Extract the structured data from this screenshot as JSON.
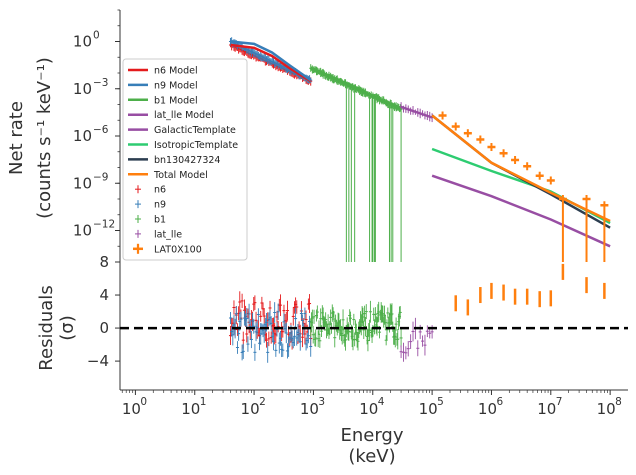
{
  "chart_data": {
    "type": "scatter",
    "x_axis": {
      "label_line1": "Energy",
      "label_line2": "(keV)",
      "scale": "log",
      "range": [
        0.55,
        200000000
      ],
      "ticks": [
        {
          "value": 1,
          "label": "10",
          "exp": "0"
        },
        {
          "value": 10,
          "label": "10",
          "exp": "1"
        },
        {
          "value": 100,
          "label": "10",
          "exp": "2"
        },
        {
          "value": 1000,
          "label": "10",
          "exp": "3"
        },
        {
          "value": 10000,
          "label": "10",
          "exp": "4"
        },
        {
          "value": 100000,
          "label": "10",
          "exp": "5"
        },
        {
          "value": 1000000,
          "label": "10",
          "exp": "6"
        },
        {
          "value": 10000000,
          "label": "10",
          "exp": "7"
        },
        {
          "value": 100000000,
          "label": "10",
          "exp": "8"
        }
      ]
    },
    "top_panel": {
      "ylabel_line1": "Net rate",
      "ylabel_line2": "(counts s⁻¹ keV⁻¹)",
      "yscale": "log",
      "ylim": [
        1e-14,
        100.0
      ],
      "yticks": [
        {
          "value": 1,
          "label": "10",
          "exp": "0"
        },
        {
          "value": 0.001,
          "label": "10",
          "exp": "−3"
        },
        {
          "value": 1e-06,
          "label": "10",
          "exp": "−6"
        },
        {
          "value": 1e-09,
          "label": "10",
          "exp": "−9"
        },
        {
          "value": 1e-12,
          "label": "10",
          "exp": "−12"
        }
      ],
      "legend_position": "center-left",
      "legend": [
        {
          "label": "n6 Model",
          "kind": "line",
          "color": "#e41a1c"
        },
        {
          "label": "n9 Model",
          "kind": "line",
          "color": "#377eb8"
        },
        {
          "label": "b1 Model",
          "kind": "line",
          "color": "#4daf4a"
        },
        {
          "label": "lat_lle Model",
          "kind": "line",
          "color": "#984ea3"
        },
        {
          "label": "GalacticTemplate",
          "kind": "line",
          "color": "#984ea3"
        },
        {
          "label": "IsotropicTemplate",
          "kind": "line",
          "color": "#2ecc71"
        },
        {
          "label": "bn130427324",
          "kind": "line",
          "color": "#2c3e50"
        },
        {
          "label": "Total Model",
          "kind": "line",
          "color": "#ff7f0e"
        },
        {
          "label": "n6",
          "kind": "marker",
          "color": "#e41a1c"
        },
        {
          "label": "n9",
          "kind": "marker",
          "color": "#377eb8"
        },
        {
          "label": "b1",
          "kind": "marker",
          "color": "#4daf4a"
        },
        {
          "label": "lat_lle",
          "kind": "marker",
          "color": "#984ea3"
        },
        {
          "label": "LAT0X100",
          "kind": "bigmarker",
          "color": "#ff7f0e"
        }
      ],
      "models": [
        {
          "name": "n6 Model",
          "color": "#e41a1c",
          "x": [
            40,
            100,
            200,
            400,
            900
          ],
          "y": [
            0.6,
            0.4,
            0.12,
            0.02,
            0.003
          ]
        },
        {
          "name": "n9 Model",
          "color": "#377eb8",
          "x": [
            40,
            100,
            200,
            400,
            900
          ],
          "y": [
            1.0,
            0.7,
            0.2,
            0.03,
            0.0035
          ]
        },
        {
          "name": "b1 Model",
          "color": "#4daf4a",
          "x": [
            900,
            3000,
            10000,
            30000
          ],
          "y": [
            0.02,
            0.003,
            0.00035,
            5e-05
          ]
        },
        {
          "name": "lat_lle Model",
          "color": "#984ea3",
          "x": [
            30000,
            100000
          ],
          "y": [
            7e-05,
            1.5e-05
          ]
        },
        {
          "name": "GalacticTemplate",
          "color": "#984ea3",
          "x": [
            100000,
            1000000,
            10000000,
            100000000
          ],
          "y": [
            3e-09,
            1.5e-10,
            5e-12,
            1e-13
          ]
        },
        {
          "name": "IsotropicTemplate",
          "color": "#2ecc71",
          "x": [
            100000,
            1000000,
            10000000,
            100000000
          ],
          "y": [
            1.5e-07,
            6e-09,
            3e-10,
            3e-12
          ]
        },
        {
          "name": "bn130427324",
          "color": "#2c3e50",
          "x": [
            100000,
            1000000,
            10000000,
            100000000
          ],
          "y": [
            2e-05,
            2e-08,
            2e-10,
            1.5e-12
          ]
        },
        {
          "name": "Total Model",
          "color": "#ff7f0e",
          "x": [
            100000,
            1000000,
            10000000,
            100000000
          ],
          "y": [
            2e-05,
            2e-08,
            2.5e-10,
            4e-12
          ]
        }
      ],
      "data_series": [
        {
          "name": "n6",
          "color": "#e41a1c",
          "x_range": [
            40,
            900
          ],
          "y_start": 0.6,
          "y_end": 0.003
        },
        {
          "name": "n9",
          "color": "#377eb8",
          "x_range": [
            40,
            900
          ],
          "y_start": 1.0,
          "y_end": 0.0035
        },
        {
          "name": "b1",
          "color": "#4daf4a",
          "x_range": [
            900,
            30000
          ],
          "y_start": 0.02,
          "y_end": 5e-05
        },
        {
          "name": "lat_lle",
          "color": "#984ea3",
          "x_range": [
            30000,
            100000
          ],
          "y_start": 7e-05,
          "y_end": 1.5e-05
        }
      ],
      "lat_points": [
        {
          "x": 150000,
          "y": 2e-05
        },
        {
          "x": 250000,
          "y": 4e-06
        },
        {
          "x": 400000,
          "y": 1.5e-06
        },
        {
          "x": 650000,
          "y": 6e-07
        },
        {
          "x": 1000000,
          "y": 2e-07
        },
        {
          "x": 1600000,
          "y": 8e-08
        },
        {
          "x": 2500000,
          "y": 3e-08
        },
        {
          "x": 4000000,
          "y": 1.2e-08
        },
        {
          "x": 6500000,
          "y": 3e-09
        },
        {
          "x": 10000000,
          "y": 1.5e-09
        },
        {
          "x": 16000000,
          "y": 1e-10,
          "lower": 1e-14
        },
        {
          "x": 40000000,
          "y": 1e-10,
          "lower": 1e-14
        },
        {
          "x": 80000000,
          "y": 4e-11,
          "lower": 1e-14
        }
      ]
    },
    "bottom_panel": {
      "ylabel_line1": "Residuals",
      "ylabel_line2": "(σ)",
      "ylim": [
        -7.5,
        8
      ],
      "yticks": [
        {
          "value": 8,
          "label": "8"
        },
        {
          "value": 4,
          "label": "4"
        },
        {
          "value": 0,
          "label": "0"
        },
        {
          "value": -4,
          "label": "−4"
        }
      ],
      "reference_line": 0,
      "residual_series": [
        {
          "name": "n6",
          "color": "#e41a1c",
          "x_range": [
            40,
            900
          ],
          "center": 1.0,
          "spread": 2.5
        },
        {
          "name": "n9",
          "color": "#377eb8",
          "x_range": [
            40,
            900
          ],
          "center": -0.5,
          "spread": 2.5
        },
        {
          "name": "b1",
          "color": "#4daf4a",
          "x_range": [
            900,
            30000
          ],
          "center": 0.2,
          "spread": 1.8
        },
        {
          "name": "lat_lle",
          "color": "#984ea3",
          "x_range": [
            30000,
            100000
          ],
          "center": -1.5,
          "spread": 1.5
        }
      ],
      "lat_residuals": [
        {
          "x": 250000,
          "y": 3
        },
        {
          "x": 400000,
          "y": 2.5
        },
        {
          "x": 650000,
          "y": 4
        },
        {
          "x": 1000000,
          "y": 4.5
        },
        {
          "x": 1600000,
          "y": 4.3
        },
        {
          "x": 2500000,
          "y": 3.8
        },
        {
          "x": 4000000,
          "y": 3.8
        },
        {
          "x": 6500000,
          "y": 3.5
        },
        {
          "x": 10000000,
          "y": 3.6
        },
        {
          "x": 16000000,
          "y": 6.8
        },
        {
          "x": 40000000,
          "y": 5.2
        },
        {
          "x": 80000000,
          "y": 4.5
        }
      ]
    }
  }
}
